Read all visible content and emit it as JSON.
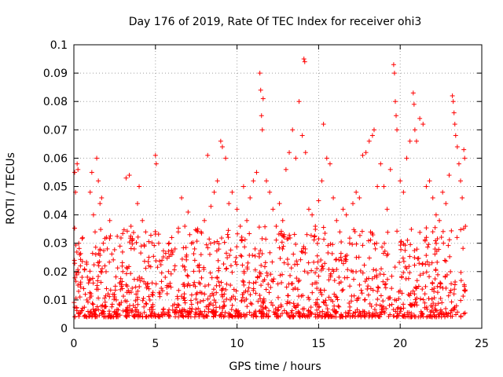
{
  "chart_data": {
    "type": "scatter",
    "title": "Day 176 of 2019, Rate Of TEC Index for receiver ohi3",
    "xlabel": "GPS time / hours",
    "ylabel": "ROTI / TECUs",
    "xlim": [
      0,
      25
    ],
    "ylim": [
      0,
      0.1
    ],
    "x_ticks": [
      "0",
      "5",
      "10",
      "15",
      "20",
      "25"
    ],
    "y_ticks": [
      "0",
      "0.01",
      "0.02",
      "0.03",
      "0.04",
      "0.05",
      "0.06",
      "0.07",
      "0.08",
      "0.09",
      "0.1"
    ],
    "grid": true,
    "marker": "plus",
    "color": "#ff0000",
    "series": [
      {
        "values_note_x_hours_y_tecus": "",
        "points": [
          [
            0.05,
            0.055
          ],
          [
            0.1,
            0.048
          ],
          [
            0.2,
            0.058
          ],
          [
            0.25,
            0.056
          ],
          [
            0.3,
            0.03
          ],
          [
            0.35,
            0.026
          ],
          [
            0.4,
            0.022
          ],
          [
            0.5,
            0.018
          ],
          [
            0.6,
            0.014
          ],
          [
            0.7,
            0.012
          ],
          [
            0.8,
            0.01
          ],
          [
            0.9,
            0.016
          ],
          [
            1.0,
            0.048
          ],
          [
            1.1,
            0.055
          ],
          [
            1.2,
            0.04
          ],
          [
            1.3,
            0.034
          ],
          [
            1.4,
            0.06
          ],
          [
            1.5,
            0.052
          ],
          [
            1.6,
            0.044
          ],
          [
            1.7,
            0.046
          ],
          [
            1.8,
            0.03
          ],
          [
            1.9,
            0.022
          ],
          [
            2.0,
            0.014
          ],
          [
            2.2,
            0.038
          ],
          [
            2.4,
            0.012
          ],
          [
            2.6,
            0.01
          ],
          [
            2.8,
            0.016
          ],
          [
            3.0,
            0.02
          ],
          [
            3.2,
            0.053
          ],
          [
            3.4,
            0.054
          ],
          [
            3.5,
            0.036
          ],
          [
            3.7,
            0.028
          ],
          [
            3.9,
            0.044
          ],
          [
            4.0,
            0.05
          ],
          [
            4.2,
            0.038
          ],
          [
            4.4,
            0.034
          ],
          [
            4.6,
            0.022
          ],
          [
            4.8,
            0.016
          ],
          [
            5.0,
            0.061
          ],
          [
            5.05,
            0.058
          ],
          [
            5.2,
            0.03
          ],
          [
            5.4,
            0.024
          ],
          [
            5.6,
            0.018
          ],
          [
            5.8,
            0.02
          ],
          [
            6.0,
            0.032
          ],
          [
            6.2,
            0.028
          ],
          [
            6.4,
            0.034
          ],
          [
            6.6,
            0.046
          ],
          [
            6.8,
            0.036
          ],
          [
            7.0,
            0.041
          ],
          [
            7.2,
            0.03
          ],
          [
            7.4,
            0.028
          ],
          [
            7.6,
            0.022
          ],
          [
            7.8,
            0.034
          ],
          [
            8.0,
            0.038
          ],
          [
            8.2,
            0.061
          ],
          [
            8.4,
            0.043
          ],
          [
            8.6,
            0.048
          ],
          [
            8.8,
            0.052
          ],
          [
            9.0,
            0.066
          ],
          [
            9.1,
            0.064
          ],
          [
            9.3,
            0.06
          ],
          [
            9.5,
            0.044
          ],
          [
            9.7,
            0.048
          ],
          [
            10.0,
            0.042
          ],
          [
            10.2,
            0.036
          ],
          [
            10.4,
            0.05
          ],
          [
            10.6,
            0.038
          ],
          [
            10.8,
            0.046
          ],
          [
            11.0,
            0.052
          ],
          [
            11.2,
            0.055
          ],
          [
            11.4,
            0.09
          ],
          [
            11.45,
            0.084
          ],
          [
            11.5,
            0.075
          ],
          [
            11.55,
            0.07
          ],
          [
            11.6,
            0.081
          ],
          [
            11.8,
            0.052
          ],
          [
            12.0,
            0.048
          ],
          [
            12.2,
            0.042
          ],
          [
            12.4,
            0.036
          ],
          [
            12.6,
            0.044
          ],
          [
            12.8,
            0.038
          ],
          [
            13.0,
            0.056
          ],
          [
            13.2,
            0.062
          ],
          [
            13.4,
            0.07
          ],
          [
            13.6,
            0.06
          ],
          [
            13.8,
            0.08
          ],
          [
            14.0,
            0.068
          ],
          [
            14.1,
            0.095
          ],
          [
            14.15,
            0.094
          ],
          [
            14.2,
            0.062
          ],
          [
            14.4,
            0.042
          ],
          [
            14.6,
            0.04
          ],
          [
            14.8,
            0.036
          ],
          [
            15.0,
            0.045
          ],
          [
            15.2,
            0.052
          ],
          [
            15.3,
            0.072
          ],
          [
            15.5,
            0.06
          ],
          [
            15.7,
            0.058
          ],
          [
            15.9,
            0.046
          ],
          [
            16.1,
            0.038
          ],
          [
            16.3,
            0.034
          ],
          [
            16.5,
            0.042
          ],
          [
            16.7,
            0.04
          ],
          [
            16.9,
            0.03
          ],
          [
            17.1,
            0.044
          ],
          [
            17.3,
            0.048
          ],
          [
            17.5,
            0.046
          ],
          [
            17.7,
            0.061
          ],
          [
            17.9,
            0.062
          ],
          [
            18.1,
            0.066
          ],
          [
            18.3,
            0.068
          ],
          [
            18.4,
            0.07
          ],
          [
            18.6,
            0.05
          ],
          [
            18.8,
            0.058
          ],
          [
            19.0,
            0.05
          ],
          [
            19.2,
            0.042
          ],
          [
            19.4,
            0.056
          ],
          [
            19.6,
            0.093
          ],
          [
            19.65,
            0.09
          ],
          [
            19.7,
            0.08
          ],
          [
            19.75,
            0.075
          ],
          [
            19.8,
            0.07
          ],
          [
            20.0,
            0.052
          ],
          [
            20.2,
            0.048
          ],
          [
            20.4,
            0.06
          ],
          [
            20.6,
            0.066
          ],
          [
            20.8,
            0.083
          ],
          [
            20.85,
            0.079
          ],
          [
            20.9,
            0.07
          ],
          [
            21.0,
            0.066
          ],
          [
            21.2,
            0.074
          ],
          [
            21.4,
            0.072
          ],
          [
            21.6,
            0.05
          ],
          [
            21.8,
            0.052
          ],
          [
            22.0,
            0.046
          ],
          [
            22.2,
            0.04
          ],
          [
            22.4,
            0.038
          ],
          [
            22.6,
            0.048
          ],
          [
            22.8,
            0.044
          ],
          [
            23.0,
            0.054
          ],
          [
            23.2,
            0.082
          ],
          [
            23.25,
            0.08
          ],
          [
            23.3,
            0.076
          ],
          [
            23.35,
            0.072
          ],
          [
            23.4,
            0.068
          ],
          [
            23.5,
            0.064
          ],
          [
            23.6,
            0.058
          ],
          [
            23.7,
            0.052
          ],
          [
            23.8,
            0.046
          ],
          [
            23.9,
            0.063
          ],
          [
            23.95,
            0.06
          ],
          [
            24.0,
            0.036
          ]
        ]
      }
    ]
  }
}
